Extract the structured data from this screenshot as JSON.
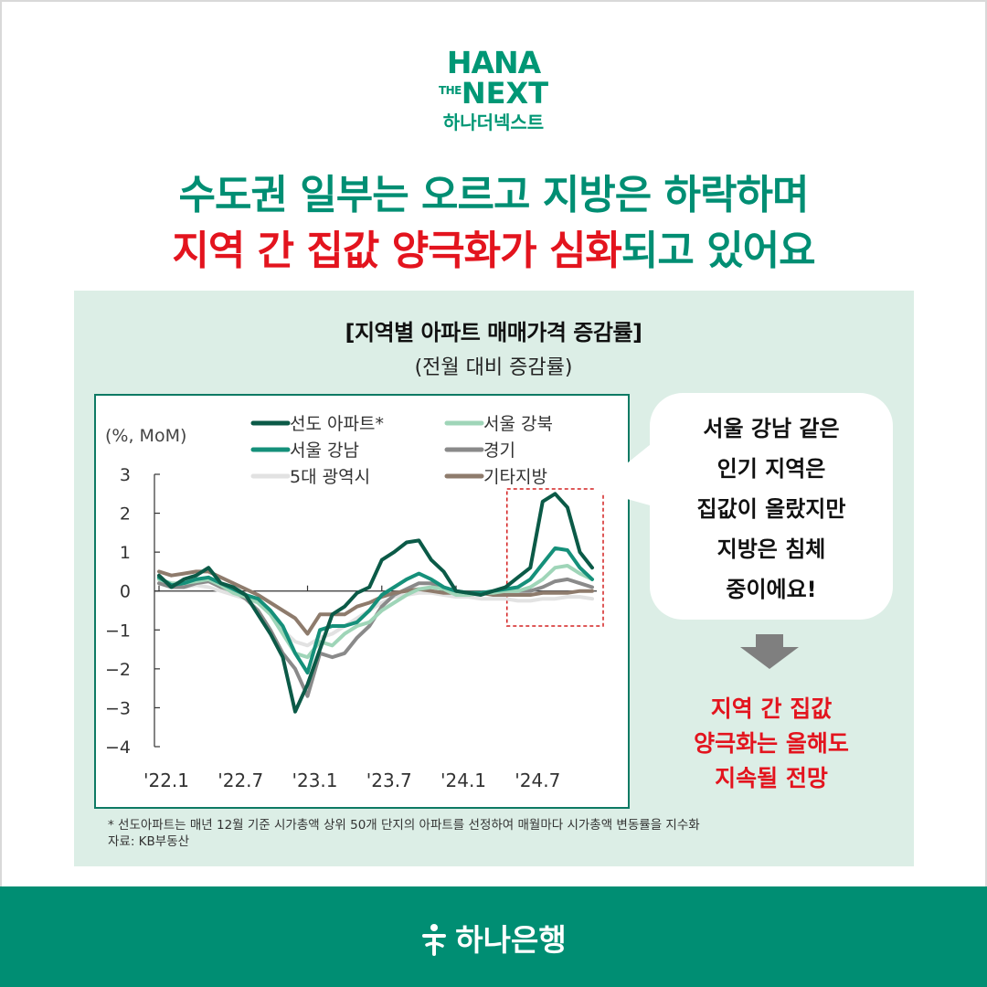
{
  "logo": {
    "line1": "HANA",
    "the": "THE",
    "next": "NEXT",
    "korean": "하나더넥스트"
  },
  "headline": {
    "line1": "수도권 일부는 오르고 지방은 하락하며",
    "line2_red": "지역 간 집값 양극화가 심화",
    "line2_green": "되고 있어요"
  },
  "chart_title": "[지역별 아파트 매매가격 증감률]",
  "chart_subtitle": "(전월 대비 증감률)",
  "bubble_lines": [
    "서울 강남 같은",
    "인기 지역은",
    "집값이 올랐지만",
    "지방은 침체",
    "중이에요!"
  ],
  "conclusion_lines": [
    "지역 간 집값",
    "양극화는 올해도",
    "지속될 전망"
  ],
  "footnote": {
    "line1": "* 선도아파트는 매년 12월 기준 시가총액 상위 50개 단지의 아파트를 선정하여 매월마다 시가총액 변동률을 지수화",
    "line2": "자료: KB부동산"
  },
  "footer_brand": "하나은행",
  "colors": {
    "brand_green": "#008e73",
    "accent_red": "#e3141e",
    "panel_bg": "#dceee6",
    "highlight_box": "#d42020"
  },
  "chart_data": {
    "type": "line",
    "unit_label": "(%, MoM)",
    "ylim": [
      -4,
      3
    ],
    "yticks": [
      3,
      2,
      1,
      0,
      -1,
      -2,
      -3,
      -4
    ],
    "ytick_labels": [
      "3",
      "2",
      "1",
      "0",
      "−1",
      "−2",
      "−3",
      "−4"
    ],
    "x": [
      "'22.1",
      "'22.2",
      "'22.3",
      "'22.4",
      "'22.5",
      "'22.6",
      "'22.7",
      "'22.8",
      "'22.9",
      "'22.10",
      "'22.11",
      "'22.12",
      "'23.1",
      "'23.2",
      "'23.3",
      "'23.4",
      "'23.5",
      "'23.6",
      "'23.7",
      "'23.8",
      "'23.9",
      "'23.10",
      "'23.11",
      "'23.12",
      "'24.1",
      "'24.2",
      "'24.3",
      "'24.4",
      "'24.5",
      "'24.6",
      "'24.7",
      "'24.8",
      "'24.9",
      "'24.10",
      "'24.11",
      "'24.12"
    ],
    "xtick_labels": [
      "'22.1",
      "'22.7",
      "'23.1",
      "'23.7",
      "'24.1",
      "'24.7"
    ],
    "xtick_positions": [
      "'22.1",
      "'22.7",
      "'23.1",
      "'23.7",
      "'24.1",
      "'24.7"
    ],
    "highlight_range": [
      "'24.6",
      "'24.12"
    ],
    "series": [
      {
        "name": "선도 아파트*",
        "color": "#0b5a47",
        "width": 4,
        "values": [
          0.4,
          0.1,
          0.3,
          0.4,
          0.6,
          0.2,
          0.1,
          -0.1,
          -0.6,
          -1.1,
          -1.7,
          -3.1,
          -2.4,
          -1.5,
          -0.6,
          -0.4,
          -0.05,
          0.1,
          0.8,
          1.0,
          1.25,
          1.3,
          0.8,
          0.5,
          0.0,
          -0.05,
          -0.1,
          0.0,
          0.1,
          0.35,
          0.6,
          2.3,
          2.5,
          2.15,
          1.0,
          0.6
        ]
      },
      {
        "name": "서울 강북",
        "color": "#9fd5b8",
        "width": 4,
        "values": [
          0.3,
          0.2,
          0.2,
          0.25,
          0.3,
          0.15,
          -0.05,
          -0.15,
          -0.3,
          -0.6,
          -1.1,
          -1.6,
          -1.7,
          -1.3,
          -1.4,
          -1.1,
          -0.9,
          -0.8,
          -0.5,
          -0.3,
          -0.1,
          0.05,
          0.1,
          0.05,
          -0.1,
          -0.1,
          -0.05,
          -0.05,
          0.0,
          0.0,
          0.1,
          0.3,
          0.6,
          0.65,
          0.45,
          0.3
        ]
      },
      {
        "name": "서울 강남",
        "color": "#15907a",
        "width": 4,
        "values": [
          0.35,
          0.15,
          0.2,
          0.3,
          0.35,
          0.2,
          0.05,
          -0.1,
          -0.2,
          -0.5,
          -0.9,
          -1.6,
          -2.1,
          -1.0,
          -0.9,
          -0.9,
          -0.8,
          -0.5,
          -0.1,
          0.1,
          0.3,
          0.45,
          0.3,
          0.1,
          0.0,
          -0.05,
          -0.05,
          0.0,
          0.05,
          0.1,
          0.3,
          0.7,
          1.1,
          1.05,
          0.6,
          0.3
        ]
      },
      {
        "name": "경기",
        "color": "#8a8a8a",
        "width": 4,
        "values": [
          0.2,
          0.1,
          0.1,
          0.2,
          0.25,
          0.1,
          0.0,
          -0.2,
          -0.5,
          -1.0,
          -1.6,
          -2.0,
          -2.7,
          -1.6,
          -1.7,
          -1.6,
          -1.2,
          -0.9,
          -0.4,
          -0.1,
          0.05,
          0.2,
          0.2,
          0.05,
          -0.05,
          -0.1,
          -0.05,
          -0.05,
          0.0,
          0.0,
          0.0,
          0.1,
          0.25,
          0.3,
          0.2,
          0.1
        ]
      },
      {
        "name": "5대 광역시",
        "color": "#e2e2e2",
        "width": 4,
        "values": [
          0.3,
          0.15,
          0.1,
          0.15,
          0.1,
          0.0,
          -0.1,
          -0.2,
          -0.3,
          -0.6,
          -1.0,
          -1.3,
          -1.4,
          -1.2,
          -1.1,
          -0.9,
          -0.7,
          -0.5,
          -0.3,
          -0.15,
          -0.1,
          -0.05,
          -0.05,
          -0.1,
          -0.15,
          -0.15,
          -0.2,
          -0.2,
          -0.2,
          -0.25,
          -0.25,
          -0.2,
          -0.2,
          -0.15,
          -0.15,
          -0.2
        ]
      },
      {
        "name": "기타지방",
        "color": "#8e7b6c",
        "width": 4,
        "values": [
          0.5,
          0.4,
          0.45,
          0.5,
          0.5,
          0.35,
          0.2,
          0.05,
          -0.1,
          -0.3,
          -0.5,
          -0.7,
          -1.1,
          -0.6,
          -0.6,
          -0.6,
          -0.4,
          -0.3,
          -0.15,
          -0.05,
          0.0,
          0.05,
          0.0,
          -0.05,
          -0.05,
          -0.05,
          -0.05,
          -0.1,
          -0.1,
          -0.1,
          -0.1,
          -0.05,
          -0.05,
          -0.05,
          0.0,
          0.0
        ]
      }
    ]
  }
}
